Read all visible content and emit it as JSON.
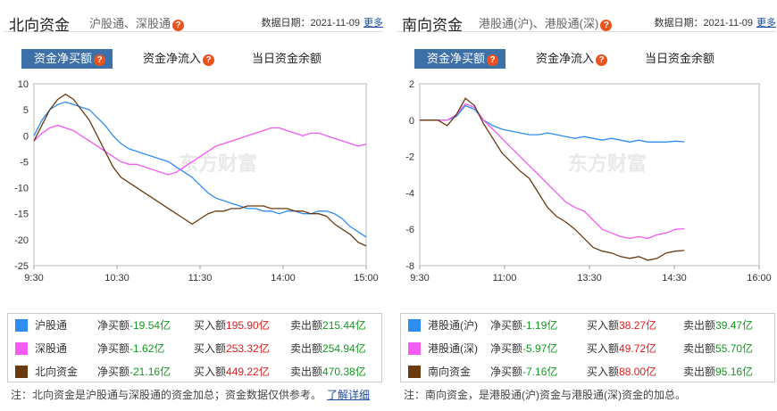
{
  "left": {
    "header": {
      "title": "北向资金",
      "subtitle": "沪股通、深股通",
      "date_label": "数据日期：2021-11-09",
      "more": "更多"
    },
    "tabs": [
      "资金净买额",
      "资金净流入",
      "当日资金余额"
    ],
    "watermark": "东方财富",
    "chart_data": {
      "type": "line",
      "x_ticks": [
        "9:30",
        "10:30",
        "11:30",
        "14:00",
        "15:00"
      ],
      "ylim": [
        -25,
        10
      ],
      "y_ticks": [
        10,
        5,
        0,
        -5,
        -10,
        -15,
        -20,
        -25
      ],
      "series": [
        {
          "name": "沪股通",
          "color": "#2e8df0",
          "values": [
            0,
            3,
            5,
            6,
            6.5,
            6,
            5.5,
            5,
            3.5,
            2,
            0,
            -1.5,
            -2.5,
            -3,
            -3.5,
            -4,
            -4.5,
            -5,
            -6,
            -7,
            -8,
            -9.5,
            -11,
            -12,
            -12.5,
            -13,
            -13.5,
            -14,
            -14,
            -14.5,
            -14.5,
            -15,
            -14.5,
            -14.5,
            -15,
            -15,
            -14.5,
            -14.5,
            -15,
            -16,
            -17.5,
            -18.5,
            -19.5
          ]
        },
        {
          "name": "深股通",
          "color": "#f35cf2",
          "values": [
            -1,
            0.5,
            1.5,
            2,
            1.5,
            1,
            0,
            -1,
            -2,
            -3,
            -4,
            -5,
            -5.5,
            -5.5,
            -6,
            -6.5,
            -7,
            -7.5,
            -7,
            -6,
            -5,
            -4,
            -3,
            -2,
            -1.5,
            -1,
            -0.5,
            0,
            0.5,
            1,
            1.5,
            1.5,
            1,
            0.5,
            0,
            0.5,
            0.5,
            0,
            -0.5,
            -1,
            -1.5,
            -2,
            -1.6
          ]
        },
        {
          "name": "北向资金",
          "color": "#6b3a0f",
          "values": [
            -1,
            2,
            5,
            7,
            8,
            7,
            5,
            3,
            0,
            -3,
            -6,
            -8,
            -9,
            -10,
            -11,
            -12,
            -13,
            -14,
            -15,
            -16,
            -17,
            -16,
            -15,
            -14.5,
            -14.5,
            -14,
            -14,
            -13.5,
            -13.5,
            -13.5,
            -14,
            -14,
            -14,
            -14.5,
            -14.5,
            -15,
            -15,
            -15.5,
            -17,
            -18,
            -19,
            -20.5,
            -21.2
          ]
        }
      ]
    },
    "legend": [
      {
        "name": "沪股通",
        "color": "#2e8df0",
        "net": "净买额-19.54亿",
        "buy": "买入额195.90亿",
        "sell": "卖出额215.44亿"
      },
      {
        "name": "深股通",
        "color": "#f35cf2",
        "net": "净买额-1.62亿",
        "buy": "买入额253.32亿",
        "sell": "卖出额254.94亿"
      },
      {
        "name": "北向资金",
        "color": "#6b3a0f",
        "net": "净买额-21.16亿",
        "buy": "买入额449.22亿",
        "sell": "卖出额470.38亿"
      }
    ],
    "note": "注：北向资金是沪股通与深股通的资金加总；资金数据仅供参考。",
    "note_link": "了解详细"
  },
  "right": {
    "header": {
      "title": "南向资金",
      "subtitle": "港股通(沪)、港股通(深)",
      "date_label": "数据日期：2021-11-09",
      "more": "更多"
    },
    "tabs": [
      "资金净买额",
      "资金净流入",
      "当日资金余额"
    ],
    "watermark": "东方财富",
    "chart_data": {
      "type": "line",
      "x_ticks": [
        "9:30",
        "11:00",
        "13:30",
        "14:30",
        "16:00"
      ],
      "ylim": [
        -8,
        2
      ],
      "y_ticks": [
        2,
        0,
        -2,
        -4,
        -6,
        -8
      ],
      "series": [
        {
          "name": "港股通(沪)",
          "color": "#2e8df0",
          "values": [
            0,
            0,
            0,
            0,
            0.2,
            0.8,
            0.6,
            0,
            -0.3,
            -0.5,
            -0.6,
            -0.7,
            -0.8,
            -0.8,
            -0.7,
            -0.8,
            -0.9,
            -1.0,
            -0.9,
            -1.0,
            -1.1,
            -1.0,
            -1.1,
            -1.2,
            -1.1,
            -1.2,
            -1.2,
            -1.2,
            -1.15,
            -1.19
          ]
        },
        {
          "name": "港股通(深)",
          "color": "#f35cf2",
          "values": [
            0,
            0,
            0,
            0,
            0.3,
            0.9,
            0.7,
            0,
            -0.5,
            -1.0,
            -1.5,
            -2,
            -2.5,
            -3,
            -3.5,
            -4,
            -4.5,
            -4.8,
            -5,
            -5.5,
            -6,
            -6.2,
            -6.4,
            -6.5,
            -6.4,
            -6.5,
            -6.3,
            -6.2,
            -6.0,
            -5.97
          ]
        },
        {
          "name": "南向资金",
          "color": "#6b3a0f",
          "values": [
            0,
            0,
            0,
            -0.3,
            0.3,
            1.2,
            0.8,
            -0.2,
            -1.0,
            -1.8,
            -2.3,
            -2.8,
            -3.2,
            -4,
            -4.8,
            -5.3,
            -5.6,
            -6,
            -6.5,
            -7,
            -7.2,
            -7.3,
            -7.5,
            -7.6,
            -7.5,
            -7.7,
            -7.6,
            -7.3,
            -7.2,
            -7.16
          ]
        }
      ]
    },
    "legend": [
      {
        "name": "港股通(沪)",
        "color": "#2e8df0",
        "net": "净买额-1.19亿",
        "buy": "买入额38.27亿",
        "sell": "卖出额39.47亿"
      },
      {
        "name": "港股通(深)",
        "color": "#f35cf2",
        "net": "净买额-5.97亿",
        "buy": "买入额49.72亿",
        "sell": "卖出额55.70亿"
      },
      {
        "name": "南向资金",
        "color": "#6b3a0f",
        "net": "净买额-7.16亿",
        "buy": "买入额88.00亿",
        "sell": "卖出额95.16亿"
      }
    ],
    "note": "注：南向资金，是港股通(沪)资金与港股通(深)资金的加总。"
  }
}
